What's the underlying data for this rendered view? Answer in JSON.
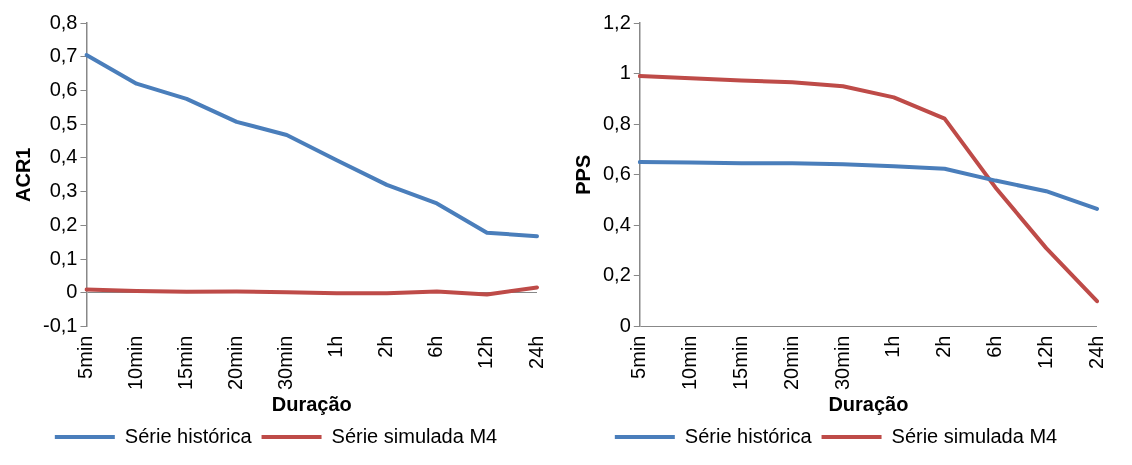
{
  "chart_data": [
    {
      "type": "line",
      "xlabel": "Duração",
      "ylabel": "ACR1",
      "categories": [
        "5min",
        "10min",
        "15min",
        "20min",
        "30min",
        "1h",
        "2h",
        "6h",
        "12h",
        "24h"
      ],
      "ylim": [
        -0.1,
        0.8
      ],
      "yticks": [
        {
          "value": -0.1,
          "label": "-0,1"
        },
        {
          "value": 0,
          "label": "0"
        },
        {
          "value": 0.1,
          "label": "0,1"
        },
        {
          "value": 0.2,
          "label": "0,2"
        },
        {
          "value": 0.3,
          "label": "0,3"
        },
        {
          "value": 0.4,
          "label": "0,4"
        },
        {
          "value": 0.5,
          "label": "0,5"
        },
        {
          "value": 0.6,
          "label": "0,6"
        },
        {
          "value": 0.7,
          "label": "0,7"
        },
        {
          "value": 0.8,
          "label": "0,8"
        }
      ],
      "grid": false,
      "legend": "bottom",
      "marker": "none",
      "line_style": "solid",
      "series": [
        {
          "name": "Série histórica",
          "color": "#4a7ebb",
          "values": [
            0.705,
            0.62,
            0.575,
            0.507,
            0.468,
            0.393,
            0.32,
            0.265,
            0.178,
            0.168
          ]
        },
        {
          "name": "Série simulada M4",
          "color": "#be4b48",
          "values": [
            0.01,
            0.005,
            0.003,
            0.004,
            0.002,
            -0.001,
            -0.001,
            0.004,
            -0.005,
            0.016
          ]
        }
      ]
    },
    {
      "type": "line",
      "xlabel": "Duração",
      "ylabel": "PPS",
      "categories": [
        "5min",
        "10min",
        "15min",
        "20min",
        "30min",
        "1h",
        "2h",
        "6h",
        "12h",
        "24h"
      ],
      "ylim": [
        0,
        1.2
      ],
      "yticks": [
        {
          "value": 0,
          "label": "0"
        },
        {
          "value": 0.2,
          "label": "0,2"
        },
        {
          "value": 0.4,
          "label": "0,4"
        },
        {
          "value": 0.6,
          "label": "0,6"
        },
        {
          "value": 0.8,
          "label": "0,8"
        },
        {
          "value": 1,
          "label": "1"
        },
        {
          "value": 1.2,
          "label": "1,2"
        }
      ],
      "grid": false,
      "legend": "bottom",
      "marker": "none",
      "line_style": "solid",
      "series": [
        {
          "name": "Série histórica",
          "color": "#4a7ebb",
          "values": [
            0.65,
            0.648,
            0.646,
            0.646,
            0.642,
            0.634,
            0.624,
            0.577,
            0.535,
            0.465
          ]
        },
        {
          "name": "Série simulada M4",
          "color": "#be4b48",
          "values": [
            0.99,
            0.982,
            0.973,
            0.966,
            0.95,
            0.906,
            0.822,
            0.55,
            0.31,
            0.1
          ]
        }
      ]
    }
  ]
}
